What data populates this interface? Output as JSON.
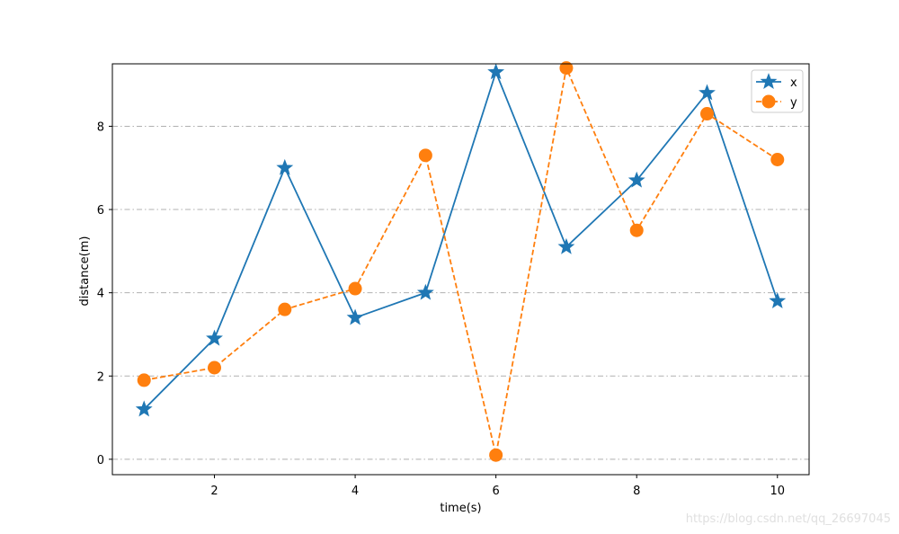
{
  "chart_data": {
    "type": "line",
    "title": "",
    "xlabel": "time(s)",
    "ylabel": "distance(m)",
    "xlim": [
      0.55,
      10.45
    ],
    "ylim": [
      -0.37,
      9.5
    ],
    "x": [
      1,
      2,
      3,
      4,
      5,
      6,
      7,
      8,
      9,
      10
    ],
    "xticks": [
      2,
      4,
      6,
      8,
      10
    ],
    "yticks": [
      0,
      2,
      4,
      6,
      8
    ],
    "grid": "horizontal, dash-dot, gray",
    "legend_position": "top-right",
    "series": [
      {
        "name": "x",
        "values": [
          1.2,
          2.9,
          7.0,
          3.4,
          4.0,
          9.3,
          5.1,
          6.7,
          8.8,
          3.8
        ],
        "color": "#1f77b4",
        "linestyle": "solid",
        "marker": "star"
      },
      {
        "name": "y",
        "values": [
          1.9,
          2.2,
          3.6,
          4.1,
          7.3,
          0.1,
          9.4,
          5.5,
          8.3,
          7.2
        ],
        "color": "#ff7f0e",
        "linestyle": "dashed",
        "marker": "circle"
      }
    ]
  },
  "watermark": "https://blog.csdn.net/qq_26697045"
}
